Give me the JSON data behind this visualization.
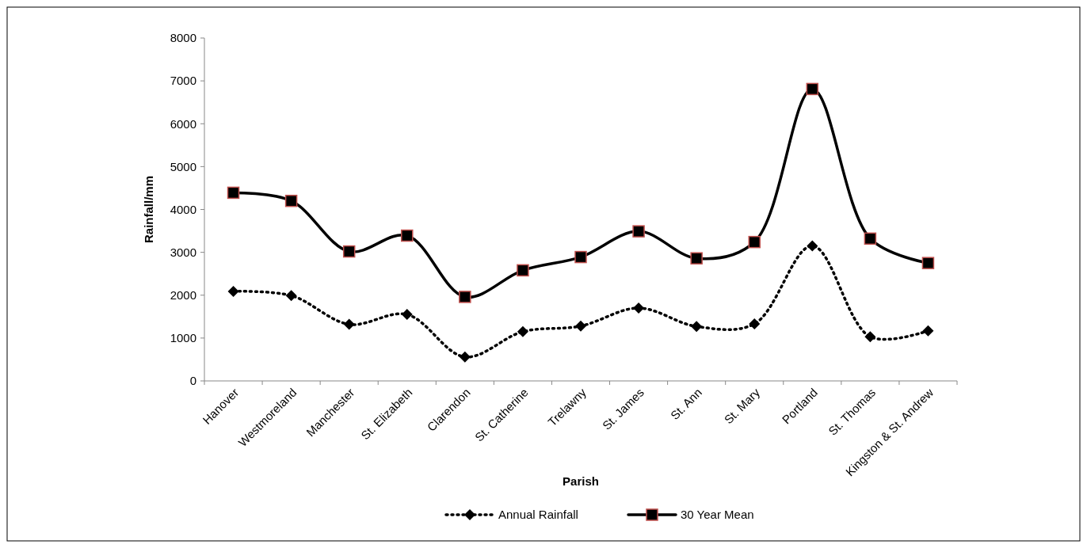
{
  "chart_data": {
    "type": "line",
    "xlabel": "Parish",
    "ylabel": "Rainfall/mm",
    "categories": [
      "Hanover",
      "Westmoreland",
      "Manchester",
      "St. Elizabeth",
      "Clarendon",
      "St. Catherine",
      "Trelawny",
      "St. James",
      "St. Ann",
      "St. Mary",
      "Portland",
      "St. Thomas",
      "Kingston & St. Andrew"
    ],
    "series": [
      {
        "name": "Annual Rainfall",
        "color": "#000000",
        "marker": "diamond",
        "line_style": "dotted",
        "values": [
          2090,
          1990,
          1320,
          1550,
          560,
          1150,
          1280,
          1700,
          1270,
          1330,
          3150,
          1030,
          1170
        ]
      },
      {
        "name": "30 Year Mean",
        "color": "#000000",
        "marker": "square",
        "line_style": "solid",
        "values": [
          4390,
          4200,
          3020,
          3390,
          1960,
          2580,
          2890,
          3490,
          2860,
          3240,
          6810,
          3320,
          2750
        ]
      }
    ],
    "ylim": [
      0,
      8000
    ],
    "yticks": [
      0,
      1000,
      2000,
      3000,
      4000,
      5000,
      6000,
      7000,
      8000
    ],
    "grid": false,
    "legend": "bottom"
  }
}
